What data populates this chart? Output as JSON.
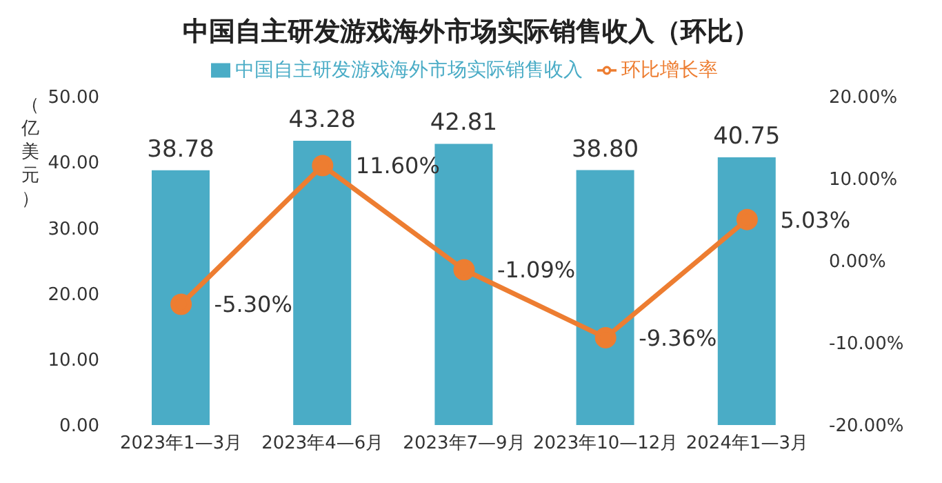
{
  "chart_data": {
    "type": "bar",
    "title": "中国自主研发游戏海外市场实际销售收入（环比）",
    "ylabel": "（亿美元）",
    "categories": [
      "2023年1—3月",
      "2023年4—6月",
      "2023年7—9月",
      "2023年10—12月",
      "2024年1—3月"
    ],
    "series": [
      {
        "name": "中国自主研发游戏海外市场实际销售收入",
        "color": "#4aacc6",
        "values": [
          38.78,
          43.28,
          42.81,
          38.8,
          40.75
        ],
        "value_labels": [
          "38.78",
          "43.28",
          "42.81",
          "38.80",
          "40.75"
        ]
      },
      {
        "name": "环比增长率",
        "type": "line",
        "axis": "y2",
        "color": "#ed7d31",
        "marker": "circle",
        "values": [
          -5.3,
          11.6,
          -1.09,
          -9.36,
          5.03
        ],
        "value_labels": [
          "-5.30%",
          "11.60%",
          "-1.09%",
          "-9.36%",
          "5.03%"
        ]
      }
    ],
    "ylim": [
      0,
      50
    ],
    "yticks": [
      {
        "value": 0,
        "label": "0.00"
      },
      {
        "value": 10,
        "label": "10.00"
      },
      {
        "value": 20,
        "label": "20.00"
      },
      {
        "value": 30,
        "label": "30.00"
      },
      {
        "value": 40,
        "label": "40.00"
      },
      {
        "value": 50,
        "label": "50.00"
      }
    ],
    "y2lim": [
      -20,
      20
    ],
    "y2ticks": [
      {
        "value": -20,
        "label": "-20.00%"
      },
      {
        "value": -10,
        "label": "-10.00%"
      },
      {
        "value": 0,
        "label": "0.00%"
      },
      {
        "value": 10,
        "label": "10.00%"
      },
      {
        "value": 20,
        "label": "20.00%"
      }
    ],
    "grid": false,
    "legend": "top"
  }
}
